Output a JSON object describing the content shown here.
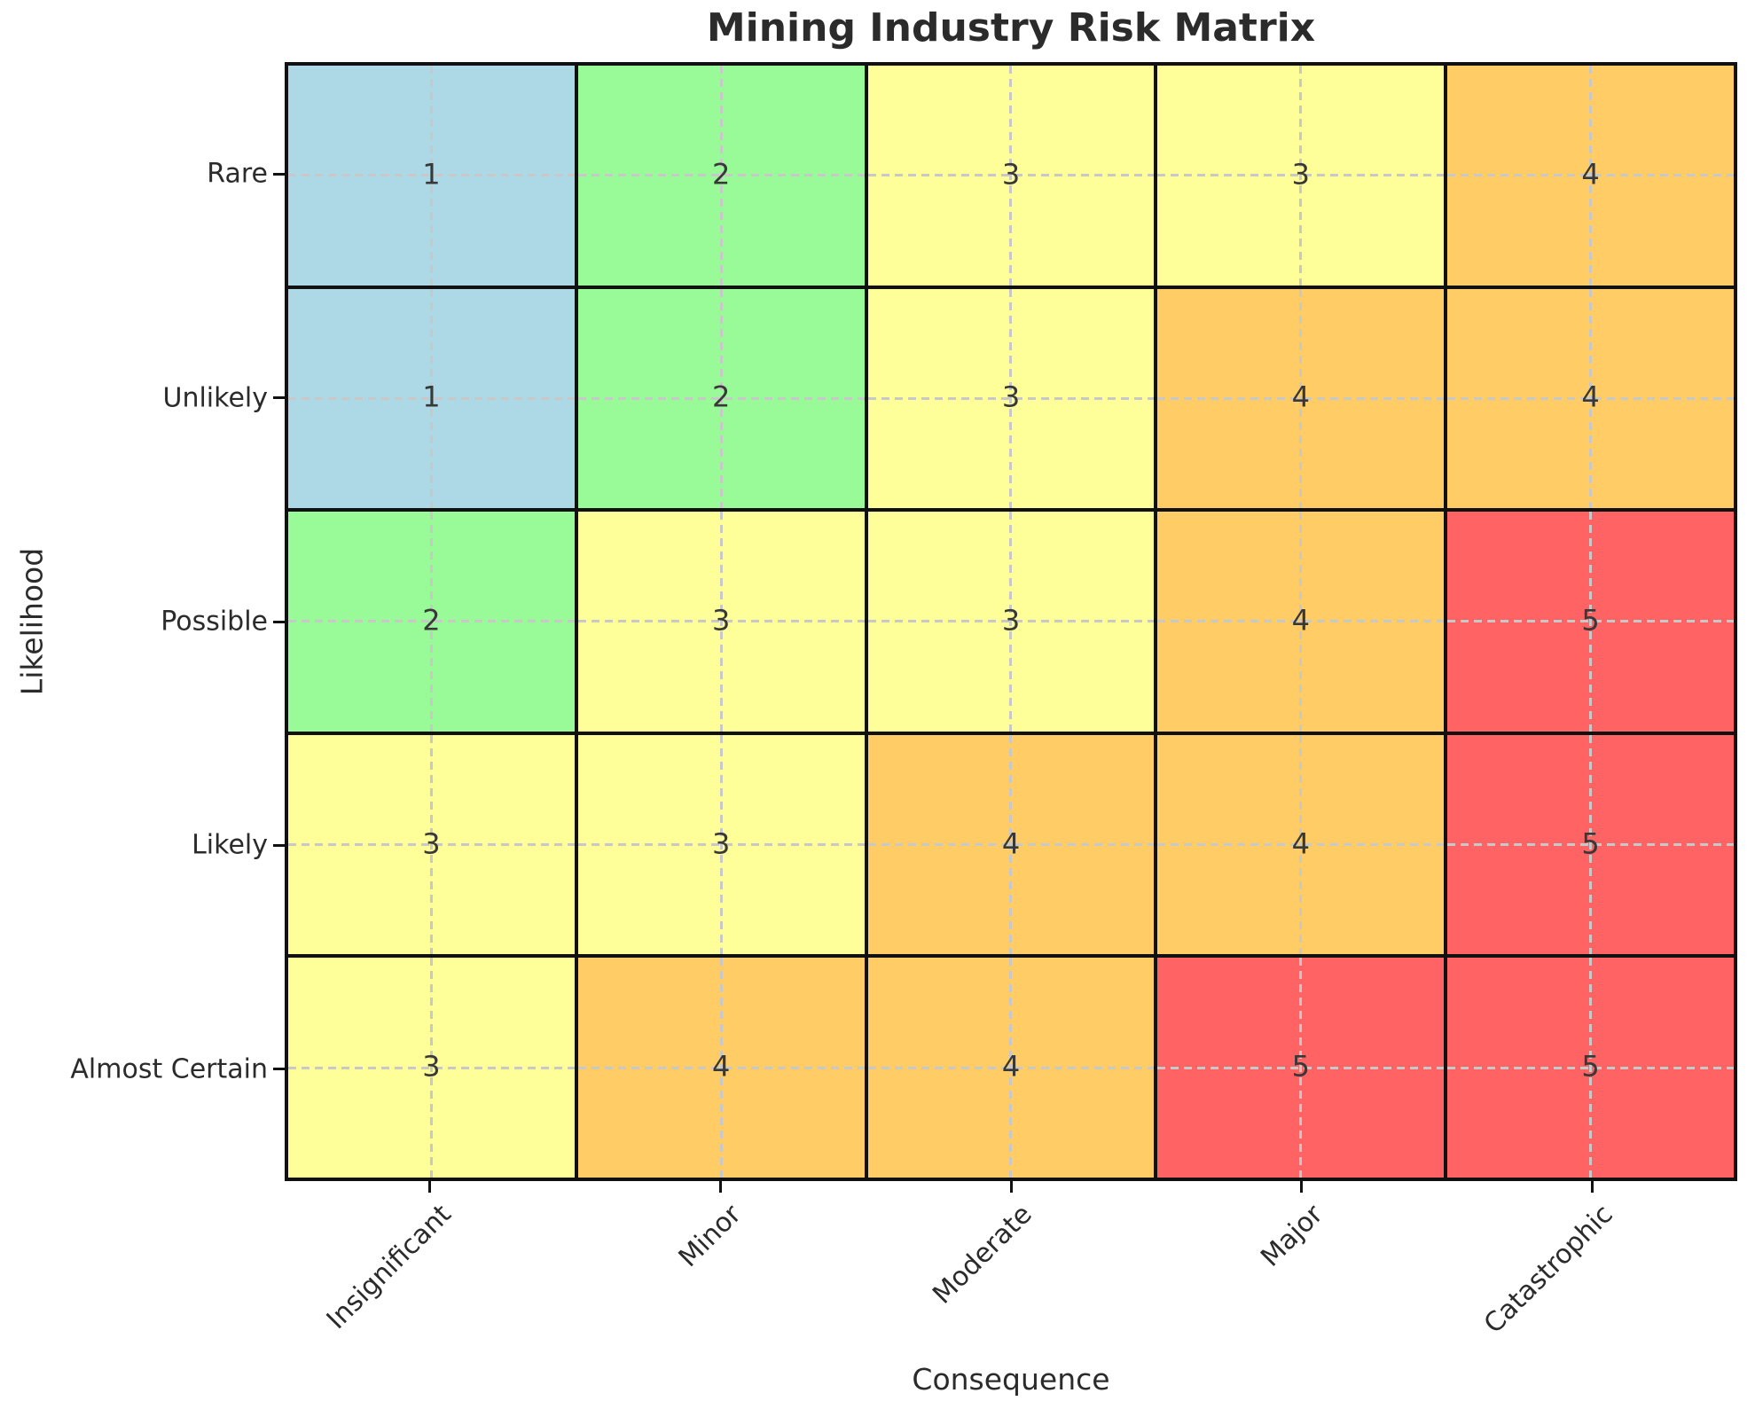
{
  "chart_data": {
    "type": "heatmap",
    "title": "Mining Industry Risk Matrix",
    "xlabel": "Consequence",
    "ylabel": "Likelihood",
    "x_categories": [
      "Insignificant",
      "Minor",
      "Moderate",
      "Major",
      "Catastrophic"
    ],
    "y_categories": [
      "Rare",
      "Unlikely",
      "Possible",
      "Likely",
      "Almost Certain"
    ],
    "values": [
      [
        1,
        2,
        3,
        3,
        4
      ],
      [
        1,
        2,
        3,
        4,
        4
      ],
      [
        2,
        3,
        3,
        4,
        5
      ],
      [
        3,
        3,
        4,
        4,
        5
      ],
      [
        3,
        4,
        4,
        5,
        5
      ]
    ],
    "value_colors": {
      "1": "#ADD8E6",
      "2": "#98FB98",
      "3": "#FFFF99",
      "4": "#FFCC66",
      "5": "#FF6363"
    },
    "grid": "dashed center lines",
    "legend": "none",
    "cell_border_color": "#111111",
    "grid_color": "#c8c8c8",
    "text_color": "#2b2b2b"
  }
}
